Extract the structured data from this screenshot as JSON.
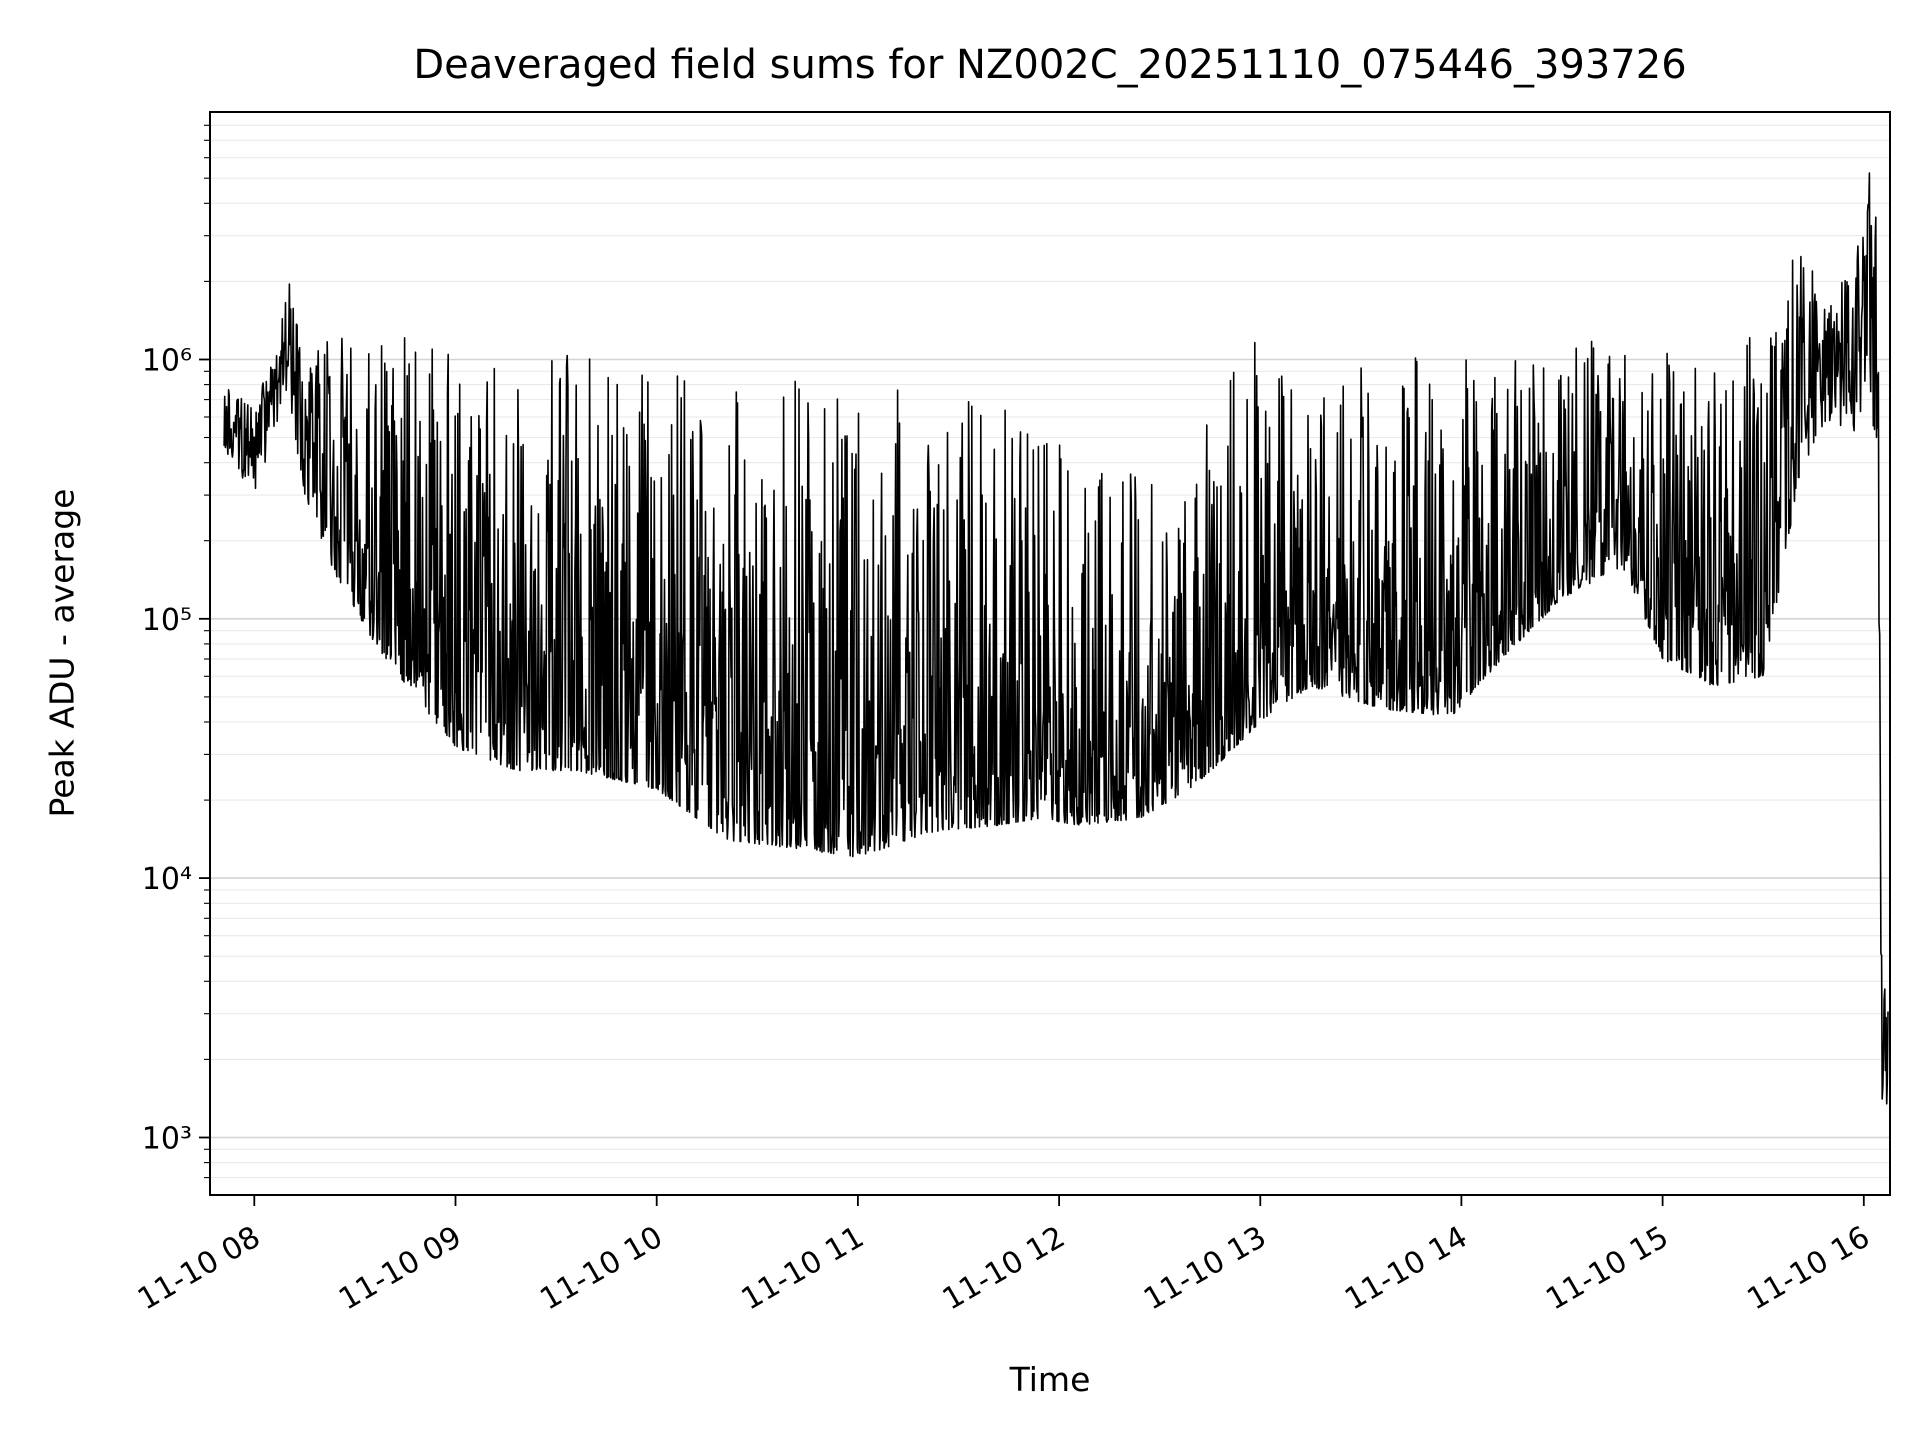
{
  "chart_data": {
    "type": "line",
    "title": "Deaveraged field sums for NZ002C_20251110_075446_393726",
    "xlabel": "Time",
    "ylabel": "Peak ADU - average",
    "legend": "none",
    "grid": "horizontal log gridlines, major and minor",
    "background": "#ffffff",
    "x_axis": {
      "ticks": [
        "11-10 08",
        "11-10 09",
        "11-10 10",
        "11-10 11",
        "11-10 12",
        "11-10 13",
        "11-10 14",
        "11-10 15",
        "11-10 16"
      ],
      "tick_hours": [
        8,
        9,
        10,
        11,
        12,
        13,
        14,
        15,
        16
      ],
      "range_hours": [
        7.78,
        16.13
      ],
      "tick_label_rotation_deg": 30
    },
    "y_axis": {
      "scale": "log",
      "ticks": [
        "10³",
        "10⁴",
        "10⁵",
        "10⁶"
      ],
      "tick_values": [
        1000,
        10000,
        100000,
        1000000
      ],
      "range": [
        600,
        9000000
      ]
    },
    "series": [
      {
        "name": "peak ADU minus average",
        "color": "#000000",
        "description": "Dense noisy time series; values given as envelope keypoints {t:hour, lo:baseline, hi:spike top, k:spikiness shape}; signal hashes between lo and hi with spikes toward hi.",
        "envelope": [
          {
            "t": 7.85,
            "lo": 420000.0,
            "hi": 850000.0,
            "k": 1.0
          },
          {
            "t": 8.0,
            "lo": 300000.0,
            "hi": 650000.0,
            "k": 1.0
          },
          {
            "t": 8.13,
            "lo": 600000.0,
            "hi": 1300000.0,
            "k": 1.0
          },
          {
            "t": 8.17,
            "lo": 700000.0,
            "hi": 2200000.0,
            "k": 1.2
          },
          {
            "t": 8.25,
            "lo": 300000.0,
            "hi": 1100000.0,
            "k": 1.2
          },
          {
            "t": 8.4,
            "lo": 150000.0,
            "hi": 1300000.0,
            "k": 1.8
          },
          {
            "t": 8.6,
            "lo": 80000.0,
            "hi": 1200000.0,
            "k": 2.2
          },
          {
            "t": 8.8,
            "lo": 50000.0,
            "hi": 1400000.0,
            "k": 2.4
          },
          {
            "t": 9.0,
            "lo": 32000.0,
            "hi": 1000000.0,
            "k": 2.5
          },
          {
            "t": 9.3,
            "lo": 26000.0,
            "hi": 900000.0,
            "k": 2.5
          },
          {
            "t": 9.6,
            "lo": 26000.0,
            "hi": 1100000.0,
            "k": 2.5
          },
          {
            "t": 10.0,
            "lo": 22000.0,
            "hi": 900000.0,
            "k": 2.5
          },
          {
            "t": 10.35,
            "lo": 14000.0,
            "hi": 800000.0,
            "k": 2.5
          },
          {
            "t": 10.7,
            "lo": 13000.0,
            "hi": 900000.0,
            "k": 2.5
          },
          {
            "t": 11.0,
            "lo": 12000.0,
            "hi": 1000000.0,
            "k": 2.6
          },
          {
            "t": 11.35,
            "lo": 15000.0,
            "hi": 800000.0,
            "k": 2.6
          },
          {
            "t": 11.7,
            "lo": 16000.0,
            "hi": 700000.0,
            "k": 2.7
          },
          {
            "t": 11.9,
            "lo": 17000.0,
            "hi": 1000000.0,
            "k": 2.7
          },
          {
            "t": 12.1,
            "lo": 16000.0,
            "hi": 450000.0,
            "k": 2.7
          },
          {
            "t": 12.4,
            "lo": 17000.0,
            "hi": 350000.0,
            "k": 2.7
          },
          {
            "t": 12.65,
            "lo": 22000.0,
            "hi": 300000.0,
            "k": 2.6
          },
          {
            "t": 12.8,
            "lo": 28000.0,
            "hi": 1100000.0,
            "k": 2.7
          },
          {
            "t": 13.0,
            "lo": 40000.0,
            "hi": 1300000.0,
            "k": 2.7
          },
          {
            "t": 13.25,
            "lo": 55000.0,
            "hi": 800000.0,
            "k": 2.7
          },
          {
            "t": 13.6,
            "lo": 45000.0,
            "hi": 1000000.0,
            "k": 2.7
          },
          {
            "t": 13.95,
            "lo": 42000.0,
            "hi": 1300000.0,
            "k": 2.7
          },
          {
            "t": 14.2,
            "lo": 70000.0,
            "hi": 1000000.0,
            "k": 2.4
          },
          {
            "t": 14.5,
            "lo": 120000.0,
            "hi": 1100000.0,
            "k": 2.2
          },
          {
            "t": 14.8,
            "lo": 160000.0,
            "hi": 1300000.0,
            "k": 2.0
          },
          {
            "t": 15.0,
            "lo": 70000.0,
            "hi": 1100000.0,
            "k": 2.3
          },
          {
            "t": 15.25,
            "lo": 55000.0,
            "hi": 900000.0,
            "k": 2.4
          },
          {
            "t": 15.5,
            "lo": 60000.0,
            "hi": 1400000.0,
            "k": 2.2
          },
          {
            "t": 15.68,
            "lo": 350000.0,
            "hi": 2800000.0,
            "k": 1.5
          },
          {
            "t": 15.8,
            "lo": 550000.0,
            "hi": 1800000.0,
            "k": 1.1
          },
          {
            "t": 15.95,
            "lo": 500000.0,
            "hi": 2200000.0,
            "k": 1.1
          },
          {
            "t": 16.03,
            "lo": 800000.0,
            "hi": 6000000.0,
            "k": 1.1
          },
          {
            "t": 16.07,
            "lo": 300000.0,
            "hi": 4000000.0,
            "k": 1.1
          },
          {
            "t": 16.09,
            "lo": 1200.0,
            "hi": 12000.0,
            "k": 1.0
          },
          {
            "t": 16.12,
            "lo": 1000.0,
            "hi": 4000.0,
            "k": 1.0
          }
        ]
      }
    ]
  },
  "style": {
    "line_color": "#000000",
    "grid_major_color": "#d4d4d4",
    "grid_minor_color": "#eaeaea",
    "background": "#ffffff"
  }
}
